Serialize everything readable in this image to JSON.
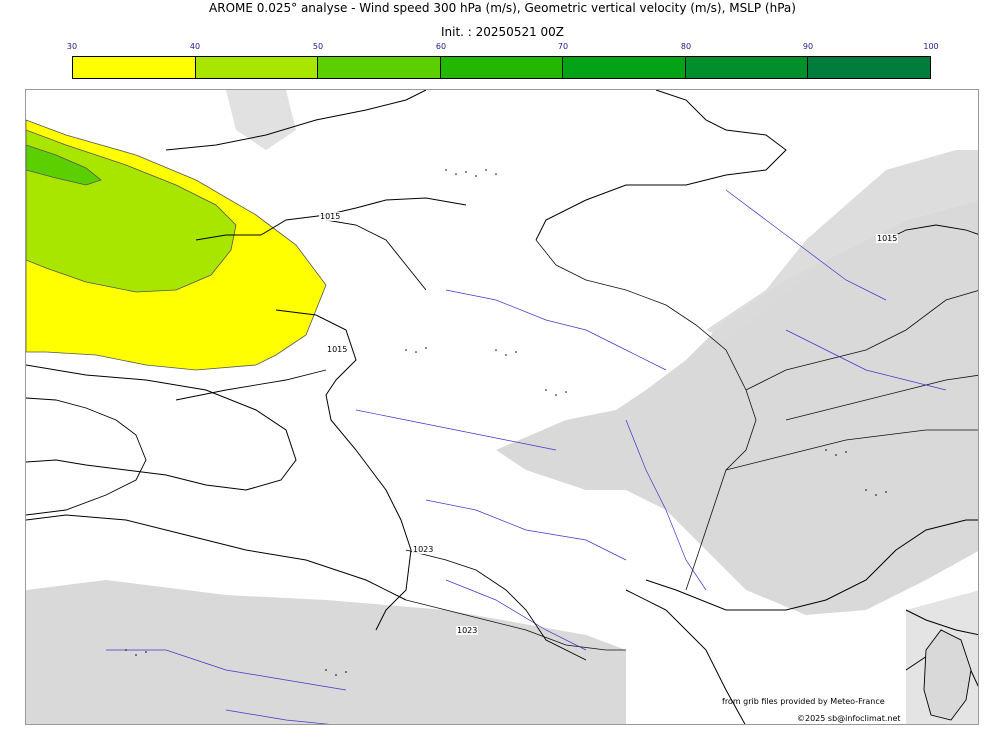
{
  "title": "AROME 0.025° analyse - Wind speed 300 hPa (m/s), Geometric vertical velocity (m/s), MSLP (hPa)",
  "subtitle": "Init. : 20250521 00Z",
  "colorbar": {
    "ticks": [
      "30",
      "40",
      "50",
      "60",
      "70",
      "80",
      "90",
      "100"
    ],
    "colors": [
      "#ffff00",
      "#a8e600",
      "#5ccf00",
      "#22b800",
      "#03a317",
      "#008f2a",
      "#007c3c",
      "#006b4a"
    ]
  },
  "isobar_labels": [
    "1015",
    "1015",
    "1015",
    "1023",
    "1023"
  ],
  "credits": {
    "source": "from grib files provided by Meteo-France",
    "copyright": "©2025 sb@infoclimat.net"
  },
  "colors": {
    "relief_shade": "#d9d9d9",
    "rivers": "#3a3acc",
    "borders": "#000000"
  }
}
